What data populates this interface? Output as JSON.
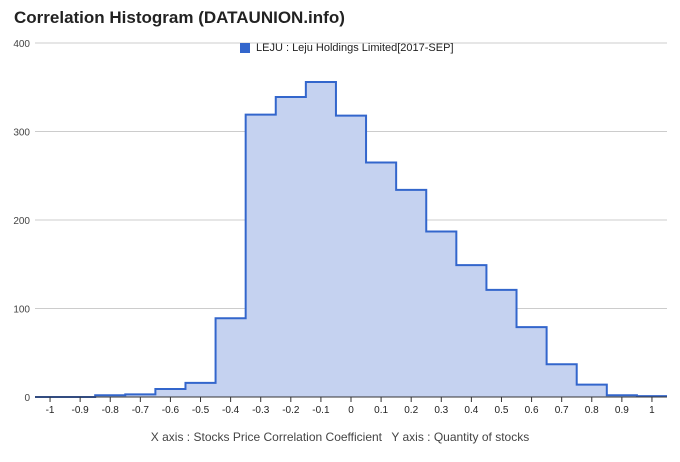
{
  "title": "Correlation Histogram (DATAUNION.info)",
  "footer": {
    "x_axis_note": "X axis : Stocks Price Correlation Coefficient",
    "y_axis_note": "Y axis : Quantity of stocks"
  },
  "colors": {
    "line": "#3366cc",
    "fill": "#c5d2f0",
    "grid": "#cccccc",
    "axis_text": "#222222"
  },
  "chart_data": {
    "type": "area",
    "step": true,
    "legend_position": "top",
    "grid": true,
    "series": [
      {
        "name": "LEJU : Leju Holdings Limited[2017-SEP]",
        "bins": [
          {
            "from": -1.05,
            "to": -0.95,
            "count": 0
          },
          {
            "from": -0.95,
            "to": -0.85,
            "count": 0
          },
          {
            "from": -0.85,
            "to": -0.75,
            "count": 2
          },
          {
            "from": -0.75,
            "to": -0.65,
            "count": 3
          },
          {
            "from": -0.65,
            "to": -0.55,
            "count": 9
          },
          {
            "from": -0.55,
            "to": -0.45,
            "count": 16
          },
          {
            "from": -0.45,
            "to": -0.35,
            "count": 89
          },
          {
            "from": -0.35,
            "to": -0.25,
            "count": 319
          },
          {
            "from": -0.25,
            "to": -0.15,
            "count": 339
          },
          {
            "from": -0.15,
            "to": -0.05,
            "count": 356
          },
          {
            "from": -0.05,
            "to": 0.05,
            "count": 318
          },
          {
            "from": 0.05,
            "to": 0.15,
            "count": 265
          },
          {
            "from": 0.15,
            "to": 0.25,
            "count": 234
          },
          {
            "from": 0.25,
            "to": 0.35,
            "count": 187
          },
          {
            "from": 0.35,
            "to": 0.45,
            "count": 149
          },
          {
            "from": 0.45,
            "to": 0.55,
            "count": 121
          },
          {
            "from": 0.55,
            "to": 0.65,
            "count": 79
          },
          {
            "from": 0.65,
            "to": 0.75,
            "count": 37
          },
          {
            "from": 0.75,
            "to": 0.85,
            "count": 14
          },
          {
            "from": 0.85,
            "to": 0.95,
            "count": 2
          },
          {
            "from": 0.95,
            "to": 1.05,
            "count": 1
          }
        ]
      }
    ],
    "xlim": [
      -1.05,
      1.05
    ],
    "ylim": [
      0,
      400
    ],
    "x_ticks": [
      "-1",
      "-0.9",
      "-0.8",
      "-0.7",
      "-0.6",
      "-0.5",
      "-0.4",
      "-0.3",
      "-0.2",
      "-0.1",
      "0",
      "0.1",
      "0.2",
      "0.3",
      "0.4",
      "0.5",
      "0.6",
      "0.7",
      "0.8",
      "0.9",
      "1"
    ],
    "y_ticks": [
      "0",
      "100",
      "200",
      "300",
      "400"
    ]
  }
}
